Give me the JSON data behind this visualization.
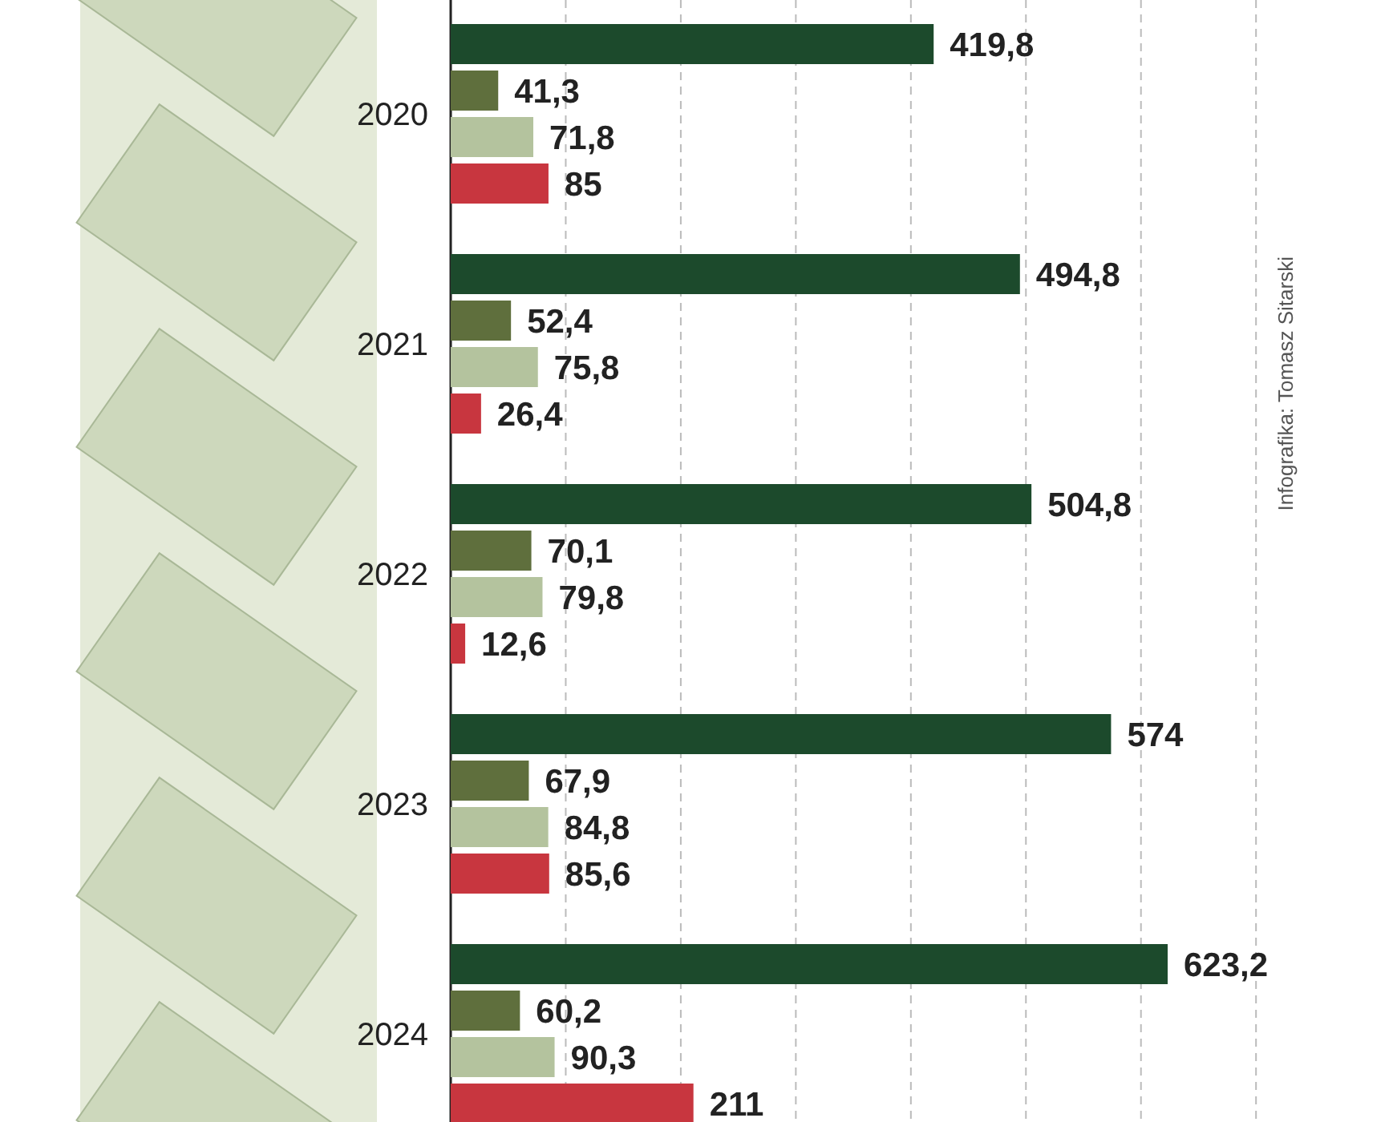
{
  "chart_data": {
    "type": "bar",
    "orientation": "horizontal",
    "categories": [
      "2020",
      "2021",
      "2022",
      "2023",
      "2024"
    ],
    "series": [
      {
        "color": "#1c4a2c",
        "values": [
          419.8,
          494.8,
          504.8,
          574,
          623.2
        ],
        "value_labels": [
          "419,8",
          "494,8",
          "504,8",
          "574",
          "623,2"
        ]
      },
      {
        "color": "#5f6f3d",
        "values": [
          41.3,
          52.4,
          70.1,
          67.9,
          60.2
        ],
        "value_labels": [
          "41,3",
          "52,4",
          "70,1",
          "67,9",
          "60,2"
        ]
      },
      {
        "color": "#b4c39e",
        "values": [
          71.8,
          75.8,
          79.8,
          84.8,
          90.3
        ],
        "value_labels": [
          "71,8",
          "75,8",
          "79,8",
          "84,8",
          "90,3"
        ]
      },
      {
        "color": "#c8363f",
        "values": [
          85,
          26.4,
          12.6,
          85.6,
          211
        ],
        "value_labels": [
          "85",
          "26,4",
          "12,6",
          "85,6",
          "211"
        ]
      }
    ],
    "xticks": [
      {
        "value": 100,
        "label": null
      },
      {
        "value": 200,
        "label": null
      },
      {
        "value": 300,
        "label": null
      },
      {
        "value": 400,
        "label": null
      },
      {
        "value": 500,
        "label": null
      },
      {
        "value": 600,
        "label": null
      },
      {
        "value": 700,
        "label": null
      }
    ],
    "grid": "x",
    "tick_labels": "y",
    "annotations": [
      "Infografika: Tomasz Sitarski"
    ]
  }
}
